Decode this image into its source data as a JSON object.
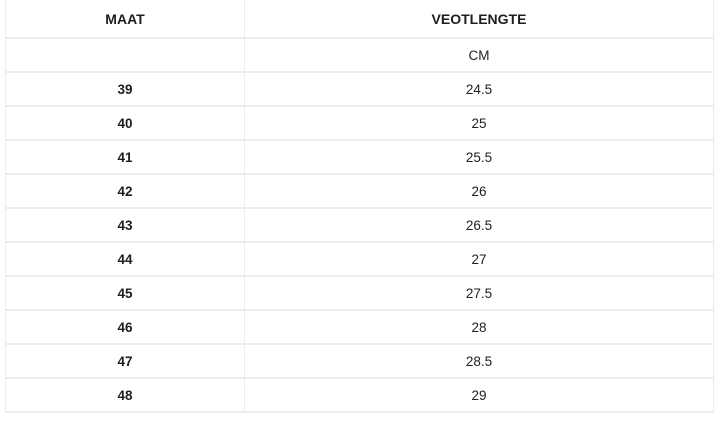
{
  "chart_data": {
    "type": "table",
    "columns": [
      "MAAT",
      "VEOTLENGTE"
    ],
    "unit_row": [
      "",
      "CM"
    ],
    "rows": [
      [
        "39",
        "24.5"
      ],
      [
        "40",
        "25"
      ],
      [
        "41",
        "25.5"
      ],
      [
        "42",
        "26"
      ],
      [
        "43",
        "26.5"
      ],
      [
        "44",
        "27"
      ],
      [
        "45",
        "27.5"
      ],
      [
        "46",
        "28"
      ],
      [
        "47",
        "28.5"
      ],
      [
        "48",
        "29"
      ]
    ]
  },
  "colors": {
    "border": "#ececec",
    "text": "#1e1e1e",
    "background": "#ffffff"
  }
}
